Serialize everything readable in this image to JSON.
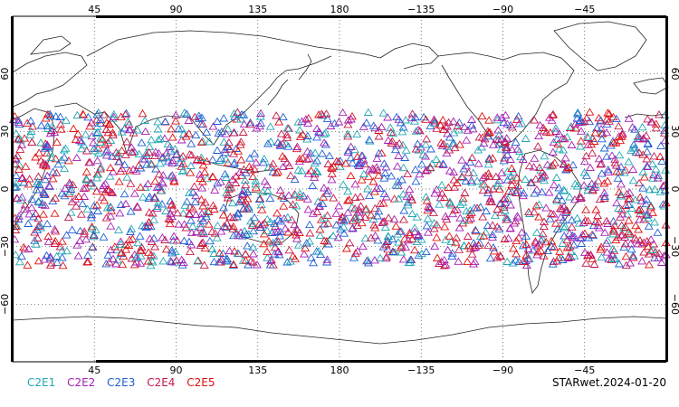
{
  "map": {
    "projection": "equirectangular",
    "lon_range": [
      0,
      360
    ],
    "lat_range": [
      -90,
      90
    ],
    "lon_ticks": [
      {
        "lon": 45,
        "label": "45"
      },
      {
        "lon": 90,
        "label": "90"
      },
      {
        "lon": 135,
        "label": "135"
      },
      {
        "lon": 180,
        "label": "180"
      },
      {
        "lon": 225,
        "label": "−135"
      },
      {
        "lon": 270,
        "label": "−90"
      },
      {
        "lon": 315,
        "label": "−45"
      }
    ],
    "lat_ticks": [
      {
        "lat": 60,
        "label": "60"
      },
      {
        "lat": 30,
        "label": "30"
      },
      {
        "lat": 0,
        "label": "0"
      },
      {
        "lat": -30,
        "label": "−30"
      },
      {
        "lat": -60,
        "label": "−60"
      }
    ],
    "grid": true,
    "marker": "triangle",
    "observation_band_lat": [
      -40,
      40
    ]
  },
  "legend": {
    "items": [
      {
        "label": "C2E1",
        "color": "#21a8b3"
      },
      {
        "label": "C2E2",
        "color": "#a51fb5"
      },
      {
        "label": "C2E3",
        "color": "#1f5fd6"
      },
      {
        "label": "C2E4",
        "color": "#c51a4a"
      },
      {
        "label": "C2E5",
        "color": "#e01010"
      }
    ]
  },
  "footer": {
    "stamp": "STARwet.2024-01-20"
  }
}
